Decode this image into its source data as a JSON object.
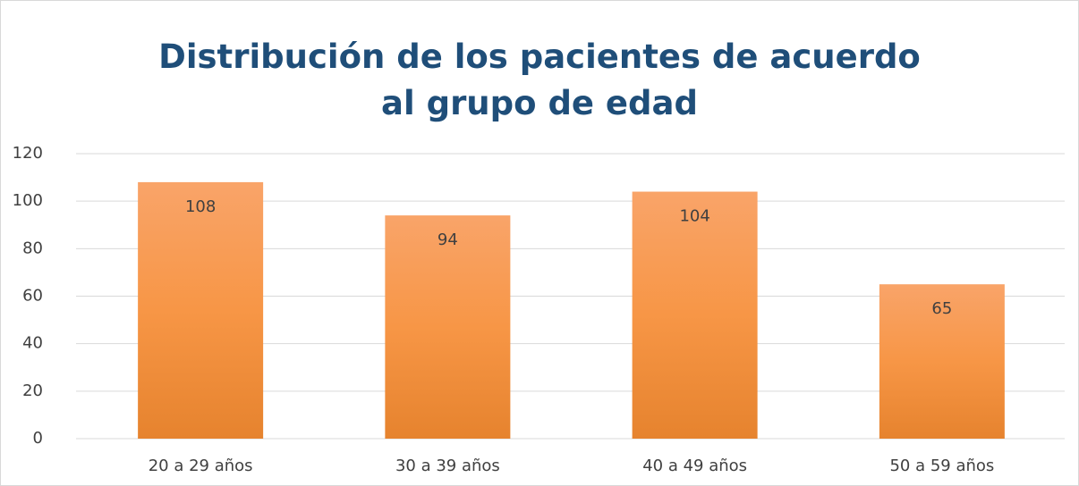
{
  "chart_data": {
    "type": "bar",
    "title": "Distribución de los pacientes de acuerdo al grupo de edad",
    "categories": [
      "20 a 29 años",
      "30 a 39 años",
      "40 a 49 años",
      "50 a 59 años"
    ],
    "values": [
      108,
      94,
      104,
      65
    ],
    "color": "#f79646",
    "ylim": [
      0,
      120
    ],
    "yticks": [
      0,
      20,
      40,
      60,
      80,
      100,
      120
    ],
    "grid": true
  }
}
